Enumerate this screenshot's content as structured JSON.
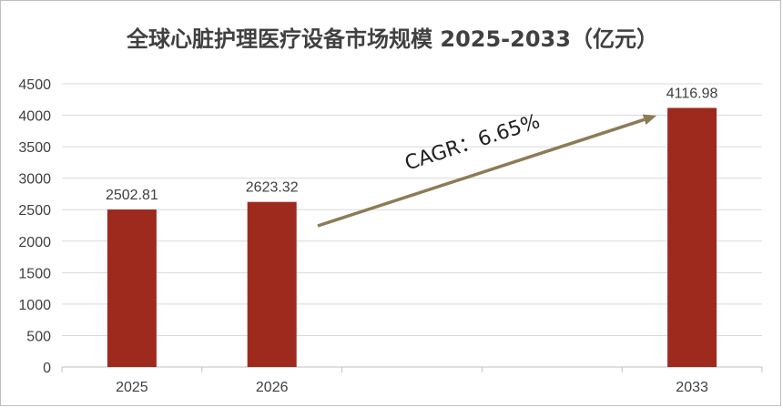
{
  "chart_data": {
    "type": "bar",
    "title": "全球心脏护理医疗设备市场规模 2025-2033（亿元）",
    "categories": [
      "2025",
      "2026",
      "",
      "",
      "2033"
    ],
    "values": [
      2502.81,
      2623.32,
      null,
      null,
      4116.98
    ],
    "data_labels": [
      "2502.81",
      "2623.32",
      "",
      "",
      "4116.98"
    ],
    "ylim": [
      0,
      4500
    ],
    "yticks": [
      "0",
      "500",
      "1000",
      "1500",
      "2000",
      "2500",
      "3000",
      "3500",
      "4000",
      "4500"
    ],
    "grid": true,
    "bar_color": "#9e2a1e",
    "annotation": {
      "text": "CAGR：6.65%",
      "arrow_color": "#8c7b55"
    }
  }
}
